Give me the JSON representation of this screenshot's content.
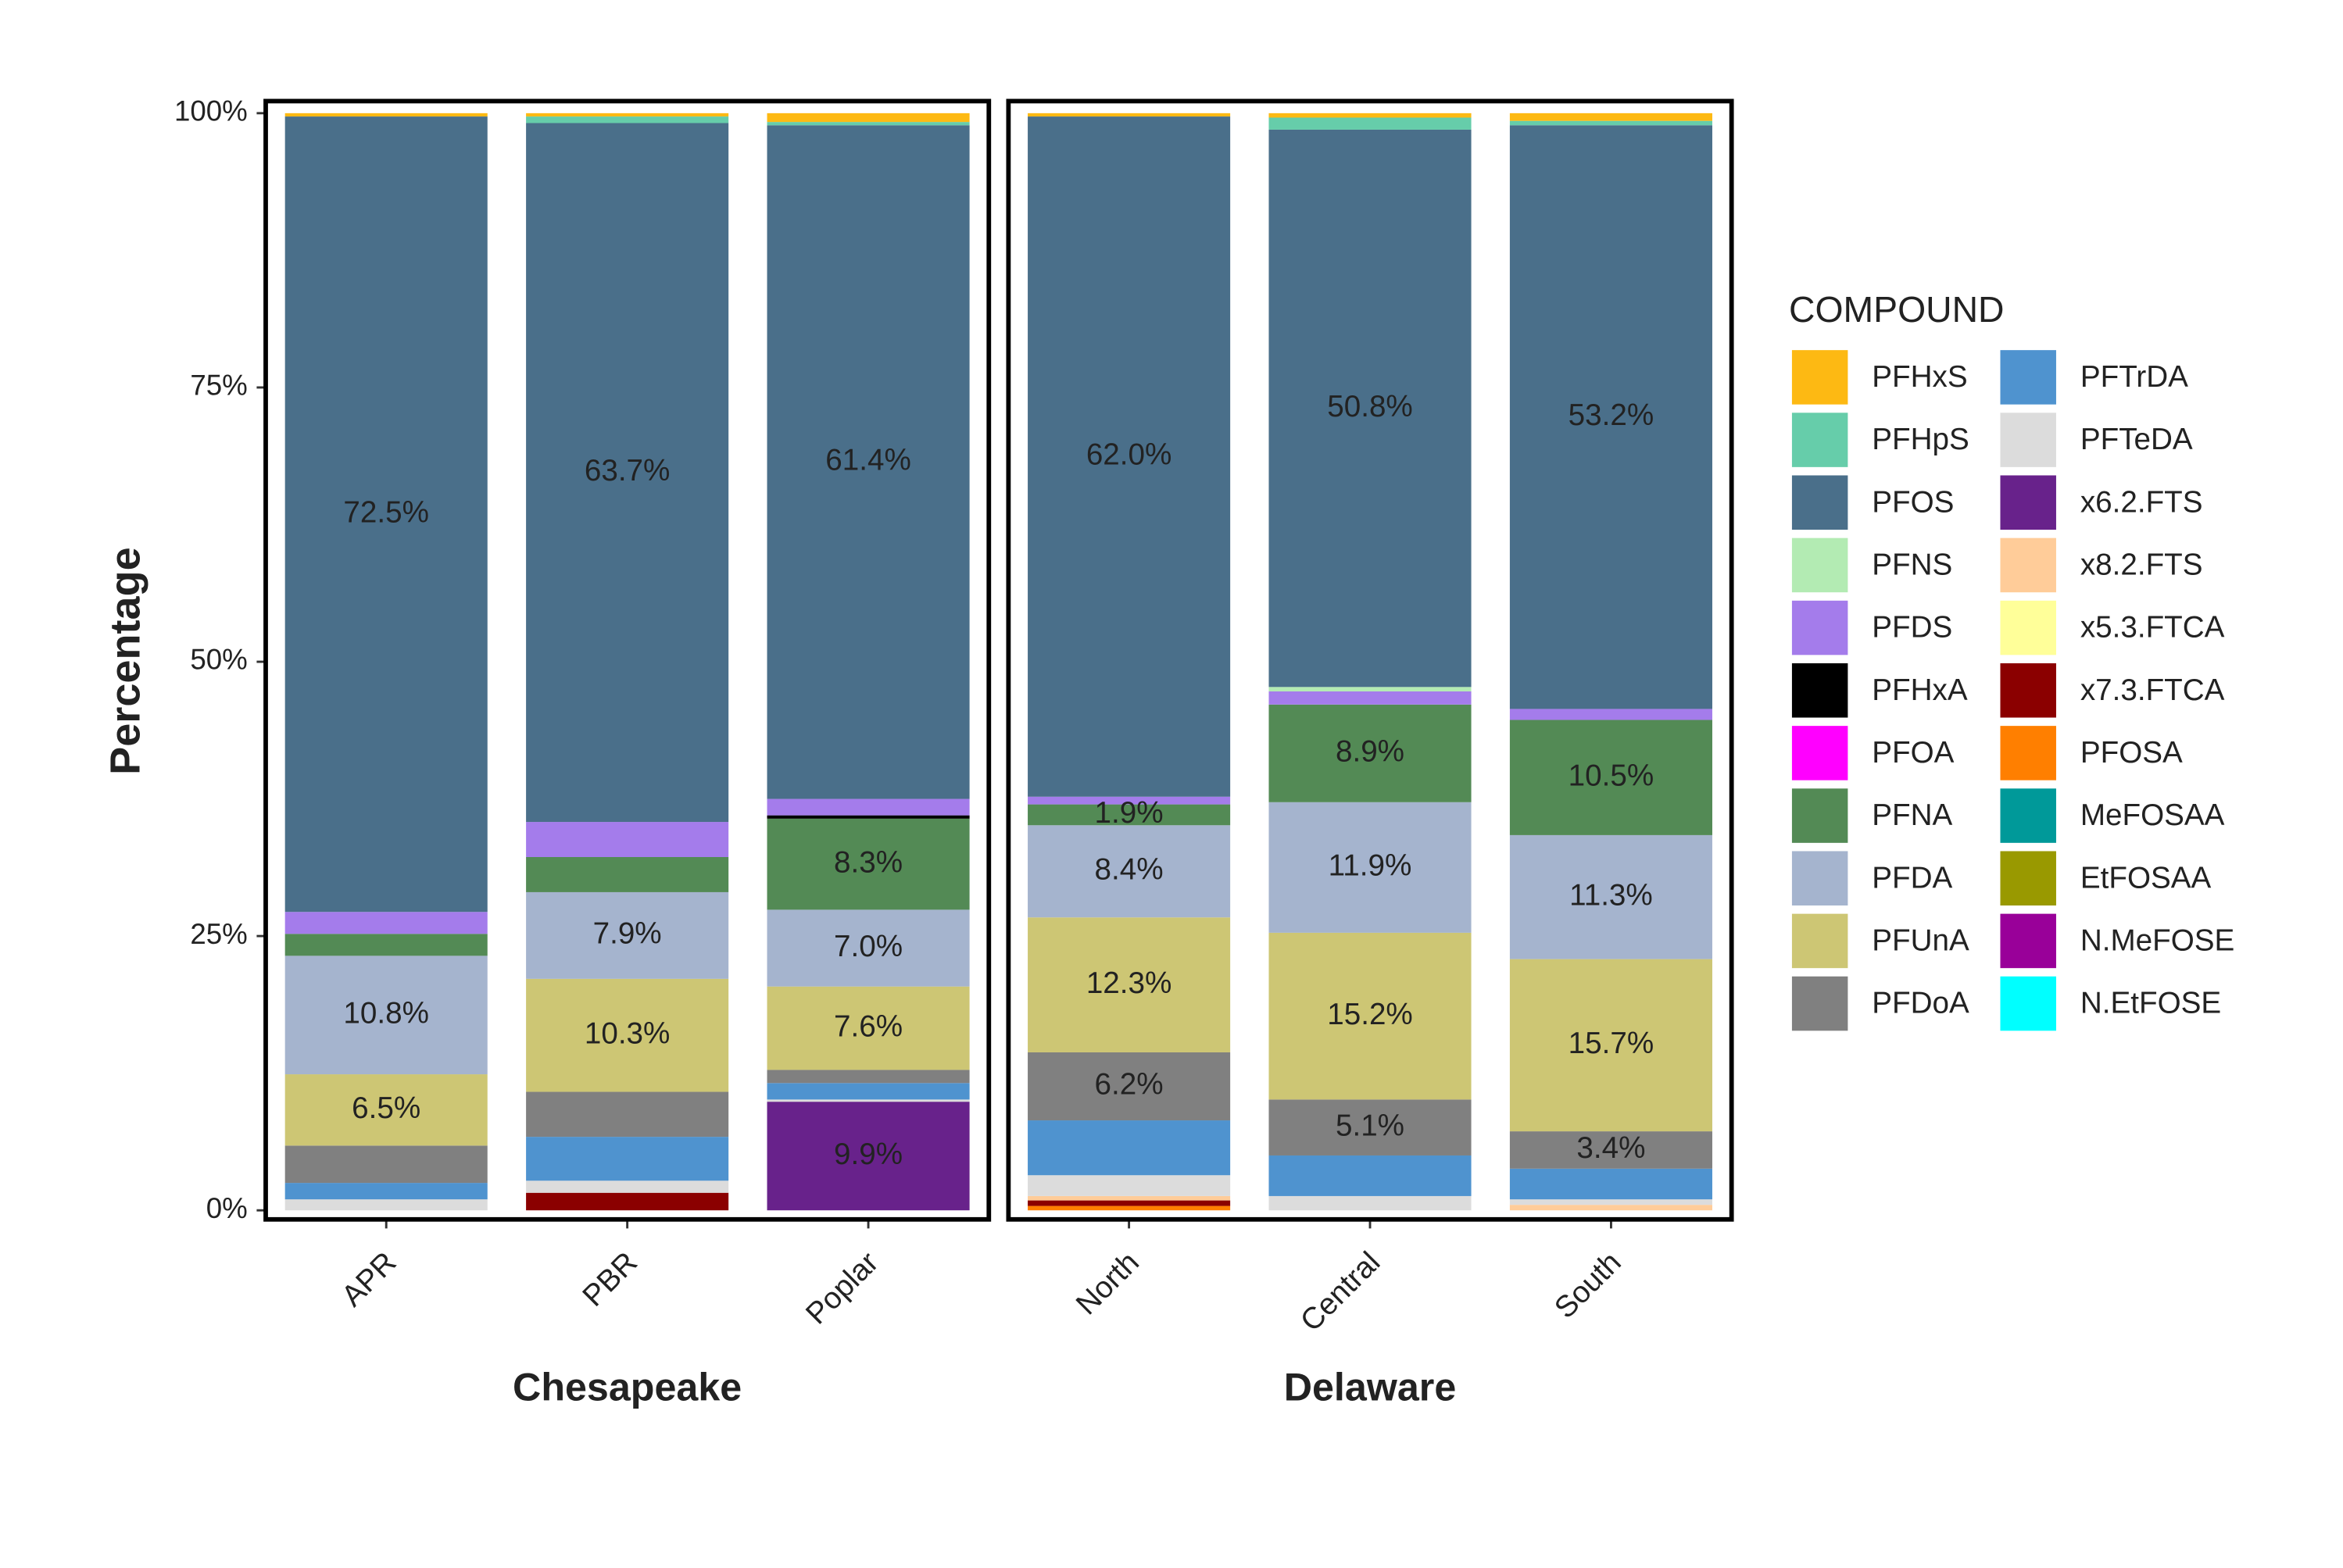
{
  "chart_data": {
    "type": "bar",
    "stacked": true,
    "y_label": "Percentage",
    "legend_title": "COMPOUND",
    "legend": "right",
    "ylim": [
      0,
      100
    ],
    "yticks": [
      {
        "value": 0,
        "label": "0%"
      },
      {
        "value": 25,
        "label": "25%"
      },
      {
        "value": 50,
        "label": "50%"
      },
      {
        "value": 75,
        "label": "75%"
      },
      {
        "value": 100,
        "label": "100%"
      }
    ],
    "facets": [
      {
        "title": "Chesapeake",
        "categories": [
          "APR",
          "PBR",
          "Poplar"
        ]
      },
      {
        "title": "Delaware",
        "categories": [
          "North",
          "Central",
          "South"
        ]
      }
    ],
    "series": [
      {
        "name": "PFHxS",
        "color": "#FDB913",
        "values": [
          0.3,
          0.3,
          0.8,
          0.3,
          0.4,
          0.7
        ]
      },
      {
        "name": "PFHpS",
        "color": "#66CDAA",
        "values": [
          0,
          0.6,
          0.3,
          0,
          1.1,
          0.4
        ]
      },
      {
        "name": "PFOS",
        "color": "#4A6F8A",
        "values": [
          72.5,
          63.7,
          61.4,
          62.0,
          50.8,
          53.2
        ],
        "value_labels": [
          "72.5%",
          "63.7%",
          "61.4%",
          "62.0%",
          "50.8%",
          "53.2%"
        ]
      },
      {
        "name": "PFNS",
        "color": "#B3EBB3",
        "values": [
          0,
          0,
          0,
          0,
          0.4,
          0
        ]
      },
      {
        "name": "PFDS",
        "color": "#A47CEB",
        "values": [
          2.0,
          3.2,
          1.5,
          0.7,
          1.2,
          1.0
        ]
      },
      {
        "name": "PFHxA",
        "color": "#000000",
        "values": [
          0,
          0,
          0.3,
          0,
          0,
          0
        ]
      },
      {
        "name": "PFOA",
        "color": "#FF00FF",
        "values": [
          0,
          0,
          0,
          0,
          0,
          0
        ]
      },
      {
        "name": "PFNA",
        "color": "#538A55",
        "values": [
          2.0,
          3.2,
          8.3,
          1.9,
          8.9,
          10.5
        ],
        "value_labels": [
          null,
          null,
          "8.3%",
          "1.9%",
          "8.9%",
          "10.5%"
        ]
      },
      {
        "name": "PFDA",
        "color": "#A5B4CE",
        "values": [
          10.8,
          7.9,
          7.0,
          8.4,
          11.9,
          11.3
        ],
        "value_labels": [
          "10.8%",
          "7.9%",
          "7.0%",
          "8.4%",
          "11.9%",
          "11.3%"
        ]
      },
      {
        "name": "PFUnA",
        "color": "#CDC674",
        "values": [
          6.5,
          10.3,
          7.6,
          12.3,
          15.2,
          15.7
        ],
        "value_labels": [
          "6.5%",
          "10.3%",
          "7.6%",
          "12.3%",
          "15.2%",
          "15.7%"
        ]
      },
      {
        "name": "PFDoA",
        "color": "#808080",
        "values": [
          3.4,
          4.1,
          1.2,
          6.2,
          5.1,
          3.4
        ],
        "value_labels": [
          null,
          null,
          null,
          "6.2%",
          "5.1%",
          "3.4%"
        ]
      },
      {
        "name": "PFTrDA",
        "color": "#4F93CF",
        "values": [
          1.5,
          4.0,
          1.5,
          5.0,
          3.7,
          2.8
        ]
      },
      {
        "name": "PFTeDA",
        "color": "#DCDCDC",
        "values": [
          1.0,
          1.1,
          0.2,
          1.9,
          1.3,
          0.5
        ]
      },
      {
        "name": "x6.2.FTS",
        "color": "#68228B",
        "values": [
          0,
          0,
          9.9,
          0,
          0,
          0
        ],
        "value_labels": [
          null,
          null,
          "9.9%",
          null,
          null,
          null
        ]
      },
      {
        "name": "x8.2.FTS",
        "color": "#FFCC99",
        "values": [
          0,
          0,
          0,
          0.4,
          0,
          0.5
        ]
      },
      {
        "name": "x5.3.FTCA",
        "color": "#FFFF99",
        "values": [
          0,
          0,
          0,
          0,
          0,
          0
        ]
      },
      {
        "name": "x7.3.FTCA",
        "color": "#8B0000",
        "values": [
          0,
          1.6,
          0,
          0.5,
          0,
          0
        ]
      },
      {
        "name": "PFOSA",
        "color": "#FF7F00",
        "values": [
          0,
          0,
          0,
          0.4,
          0,
          0
        ]
      },
      {
        "name": "MeFOSAA",
        "color": "#009999",
        "values": [
          0,
          0,
          0,
          0,
          0,
          0
        ]
      },
      {
        "name": "EtFOSAA",
        "color": "#999900",
        "values": [
          0,
          0,
          0,
          0,
          0,
          0
        ]
      },
      {
        "name": "N.MeFOSE",
        "color": "#990099",
        "values": [
          0,
          0,
          0,
          0,
          0,
          0
        ]
      },
      {
        "name": "N.EtFOSE",
        "color": "#00FFFF",
        "values": [
          0,
          0,
          0,
          0,
          0,
          0
        ]
      }
    ]
  }
}
